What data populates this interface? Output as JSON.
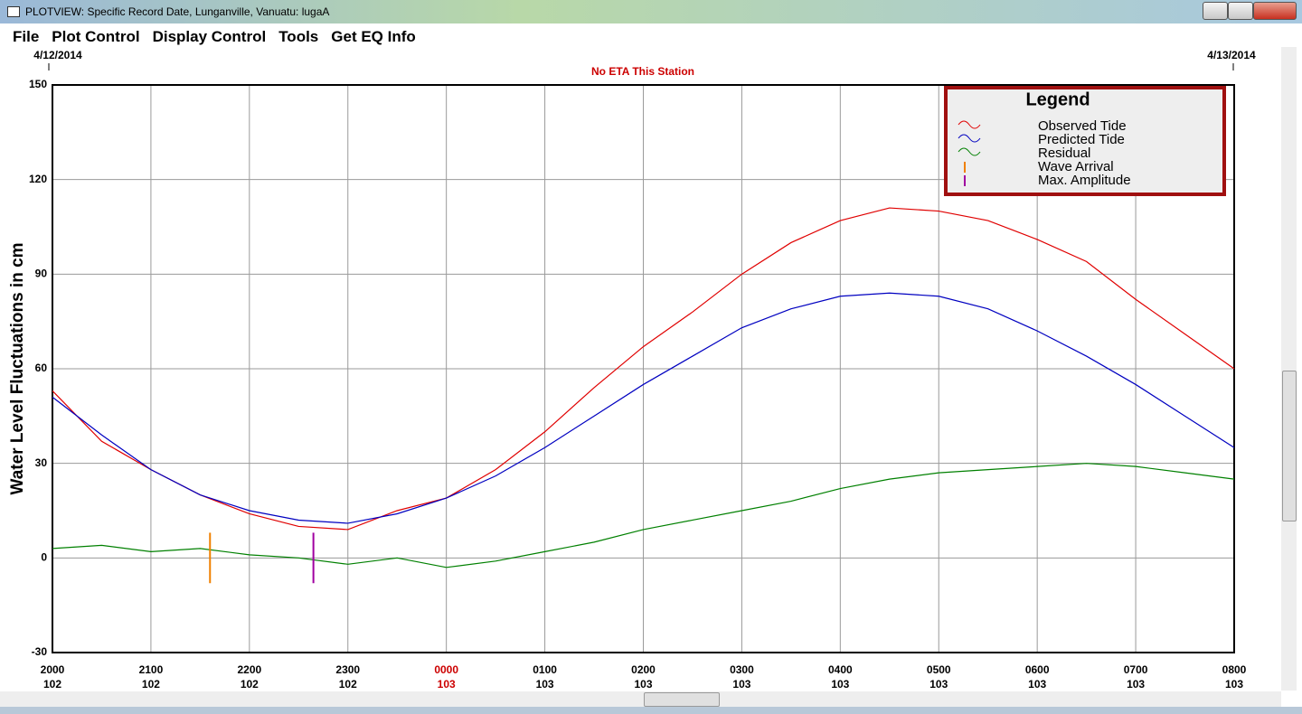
{
  "window": {
    "title": "PLOTVIEW: Specific Record Date, Lunganville, Vanuatu: lugaA",
    "menu": [
      "File",
      "Plot Control",
      "Display Control",
      "Tools",
      "Get EQ Info"
    ]
  },
  "chart_data": {
    "type": "line",
    "start_date": "4/12/2014",
    "end_date": "4/13/2014",
    "subtitle": "No ETA This Station",
    "ylabel": "Water Level Fluctuations in cm",
    "legend_title": "Legend",
    "legend_position": "upper right",
    "grid": true,
    "x": [
      0,
      0.5,
      1,
      1.5,
      2,
      2.5,
      3,
      3.5,
      4,
      4.5,
      5,
      5.5,
      6,
      6.5,
      7,
      7.5,
      8,
      8.5,
      9,
      9.5,
      10,
      10.5,
      11,
      11.5,
      12
    ],
    "xlim": [
      0,
      12
    ],
    "xticks": [
      {
        "value": 0,
        "label": "2000",
        "day": "102"
      },
      {
        "value": 1,
        "label": "2100",
        "day": "102"
      },
      {
        "value": 2,
        "label": "2200",
        "day": "102"
      },
      {
        "value": 3,
        "label": "2300",
        "day": "102"
      },
      {
        "value": 4,
        "label": "0000",
        "day": "103",
        "color": "#cc0000"
      },
      {
        "value": 5,
        "label": "0100",
        "day": "103"
      },
      {
        "value": 6,
        "label": "0200",
        "day": "103"
      },
      {
        "value": 7,
        "label": "0300",
        "day": "103"
      },
      {
        "value": 8,
        "label": "0400",
        "day": "103"
      },
      {
        "value": 9,
        "label": "0500",
        "day": "103"
      },
      {
        "value": 10,
        "label": "0600",
        "day": "103"
      },
      {
        "value": 11,
        "label": "0700",
        "day": "103"
      },
      {
        "value": 12,
        "label": "0800",
        "day": "103"
      }
    ],
    "ylim": [
      -30,
      150
    ],
    "yticks": [
      -30,
      0,
      30,
      60,
      90,
      120,
      150
    ],
    "series": [
      {
        "name": "Observed Tide",
        "color": "#e00000",
        "values": [
          53,
          37,
          28,
          20,
          14,
          10,
          9,
          15,
          19,
          28,
          40,
          54,
          67,
          78,
          90,
          100,
          107,
          111,
          110,
          107,
          101,
          94,
          82,
          71,
          60
        ]
      },
      {
        "name": "Predicted Tide",
        "color": "#0000c0",
        "values": [
          51,
          39,
          28,
          20,
          15,
          12,
          11,
          14,
          19,
          26,
          35,
          45,
          55,
          64,
          73,
          79,
          83,
          84,
          83,
          79,
          72,
          64,
          55,
          45,
          35
        ]
      },
      {
        "name": "Residual",
        "color": "#008000",
        "values": [
          3,
          4,
          2,
          3,
          1,
          0,
          -2,
          0,
          -3,
          -1,
          2,
          5,
          9,
          12,
          15,
          18,
          22,
          25,
          27,
          28,
          29,
          30,
          29,
          27,
          25
        ]
      }
    ],
    "markers": [
      {
        "name": "Wave Arrival",
        "color": "#f08000",
        "x": 1.6,
        "ymin": -8,
        "ymax": 8
      },
      {
        "name": "Max. Amplitude",
        "color": "#a000a0",
        "x": 2.65,
        "ymin": -8,
        "ymax": 8
      }
    ]
  }
}
